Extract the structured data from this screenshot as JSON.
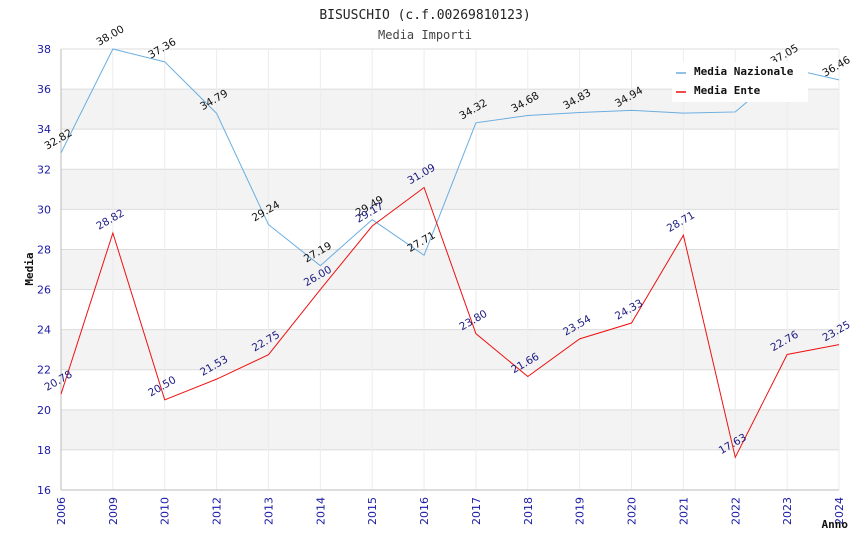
{
  "chart_data": {
    "type": "line",
    "title": "BISUSCHIO (c.f.00269810123)",
    "subtitle": "Media Importi",
    "xlabel": "Anno",
    "ylabel": "Media",
    "ylim": [
      16,
      38
    ],
    "yticks": [
      16,
      18,
      20,
      22,
      24,
      26,
      28,
      30,
      32,
      34,
      36,
      38
    ],
    "categories": [
      "2006",
      "2009",
      "2010",
      "2012",
      "2013",
      "2014",
      "2015",
      "2016",
      "2017",
      "2018",
      "2019",
      "2020",
      "2021",
      "2022",
      "2023",
      "2024"
    ],
    "series": [
      {
        "name": "Media Nazionale",
        "color": "#6aaee0",
        "values": [
          32.82,
          38.0,
          37.36,
          34.79,
          29.24,
          27.19,
          29.49,
          27.71,
          34.32,
          34.68,
          34.83,
          34.94,
          34.8,
          34.86,
          37.05,
          36.46
        ],
        "labels": [
          "32.82",
          "38.00",
          "37.36",
          "34.79",
          "29.24",
          "27.19",
          "29.49",
          "27.71",
          "34.32",
          "34.68",
          "34.83",
          "34.94",
          "",
          "",
          "37.05",
          "36.46"
        ]
      },
      {
        "name": "Media Ente",
        "color": "#ee1111",
        "values": [
          20.78,
          28.82,
          20.5,
          21.53,
          22.75,
          26.0,
          29.17,
          31.09,
          23.8,
          21.66,
          23.54,
          24.33,
          28.71,
          17.63,
          22.76,
          23.25
        ],
        "labels": [
          "20.78",
          "28.82",
          "20.50",
          "21.53",
          "22.75",
          "26.00",
          "29.17",
          "31.09",
          "23.80",
          "21.66",
          "23.54",
          "24.33",
          "28.71",
          "17.63",
          "22.76",
          "23.25"
        ]
      }
    ],
    "legend": {
      "position": "top-right"
    },
    "grid": true
  }
}
